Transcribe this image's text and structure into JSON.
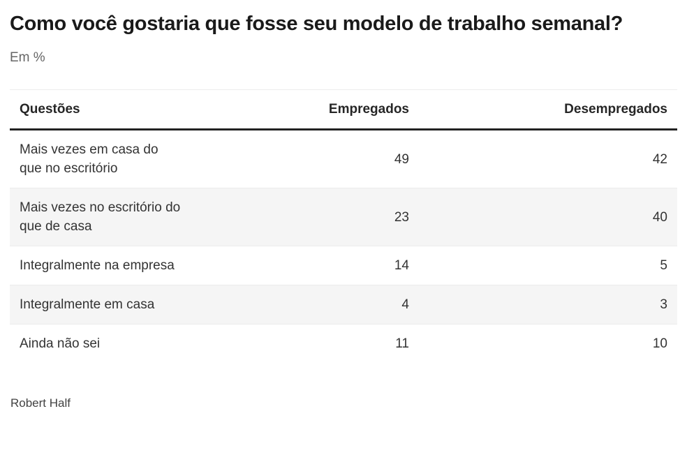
{
  "header": {
    "title": "Como você gostaria que fosse seu modelo de trabalho semanal?",
    "subtitle": "Em %"
  },
  "table": {
    "columns": [
      "Questões",
      "Empregados",
      "Desempregados"
    ],
    "rows": [
      {
        "question": "Mais vezes em casa do\nque no escritório",
        "empregados": "49",
        "desempregados": "42"
      },
      {
        "question": "Mais vezes no escritório do\nque de casa",
        "empregados": "23",
        "desempregados": "40"
      },
      {
        "question": "Integralmente na empresa",
        "empregados": "14",
        "desempregados": "5"
      },
      {
        "question": "Integralmente em casa",
        "empregados": "4",
        "desempregados": "3"
      },
      {
        "question": "Ainda não sei",
        "empregados": "11",
        "desempregados": "10"
      }
    ]
  },
  "footer": {
    "source": "Robert Half"
  },
  "colors": {
    "title_text": "#1a1a1a",
    "subtitle_text": "#666666",
    "header_text": "#262626",
    "cell_text": "#333333",
    "header_rule": "#222222",
    "row_stripe": "#f5f5f5",
    "background": "#ffffff"
  },
  "chart_data": {
    "type": "table",
    "title": "Como você gostaria que fosse seu modelo de trabalho semanal?",
    "subtitle": "Em %",
    "unit": "%",
    "columns": [
      "Questões",
      "Empregados",
      "Desempregados"
    ],
    "categories": [
      "Mais vezes em casa do que no escritório",
      "Mais vezes no escritório do que de casa",
      "Integralmente na empresa",
      "Integralmente em casa",
      "Ainda não sei"
    ],
    "series": [
      {
        "name": "Empregados",
        "values": [
          49,
          23,
          14,
          4,
          11
        ]
      },
      {
        "name": "Desempregados",
        "values": [
          42,
          40,
          5,
          3,
          10
        ]
      }
    ],
    "source": "Robert Half",
    "layout_hints": {
      "striped_rows": true,
      "value_alignment": "right",
      "header_rule": "thick-dark"
    }
  }
}
